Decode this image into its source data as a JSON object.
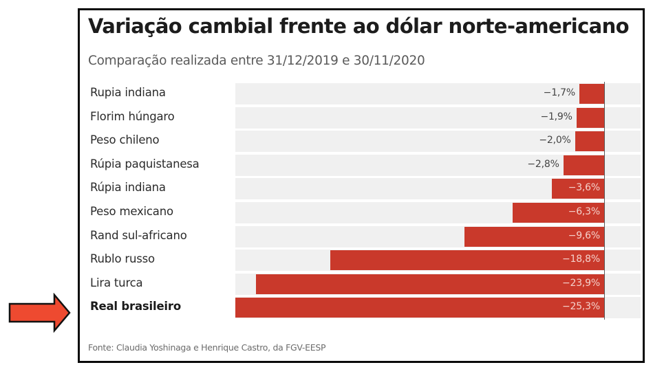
{
  "header": {
    "title": "Variação cambial frente ao dólar norte-americano",
    "subtitle": "Comparação realizada entre 31/12/2019 e 30/11/2020"
  },
  "source": "Fonte: Claudia Yoshinaga e Henrique Castro, da FGV-EESP",
  "annotation": {
    "icon": "right-arrow-icon",
    "points_to": "Real brasileiro",
    "color": "#ee4a30"
  },
  "colors": {
    "bar": "#c9392b",
    "track": "#f0f0f0",
    "label_inside": "#f5d2cc",
    "label_outside": "#444444"
  },
  "chart_data": {
    "type": "bar",
    "orientation": "horizontal",
    "title": "Variação cambial frente ao dólar norte-americano",
    "subtitle": "Comparação realizada entre 31/12/2019 e 30/11/2020",
    "xlabel": "",
    "ylabel": "",
    "unit": "%",
    "xlim": [
      -25.3,
      0
    ],
    "grid": false,
    "legend": "none",
    "categories": [
      "Rupia indiana",
      "Florim húngaro",
      "Peso chileno",
      "Rúpia paquistanesa",
      "Rúpia indiana",
      "Peso mexicano",
      "Rand sul-africano",
      "Rublo russo",
      "Lira turca",
      "Real brasileiro"
    ],
    "values": [
      -1.7,
      -1.9,
      -2.0,
      -2.8,
      -3.6,
      -6.3,
      -9.6,
      -18.8,
      -23.9,
      -25.3
    ],
    "data_labels": [
      "−1,7%",
      "−1,9%",
      "−2,0%",
      "−2,8%",
      "−3,6%",
      "−6,3%",
      "−9,6%",
      "−18,8%",
      "−23,9%",
      "−25,3%"
    ],
    "highlighted": [
      "Real brasileiro"
    ]
  }
}
